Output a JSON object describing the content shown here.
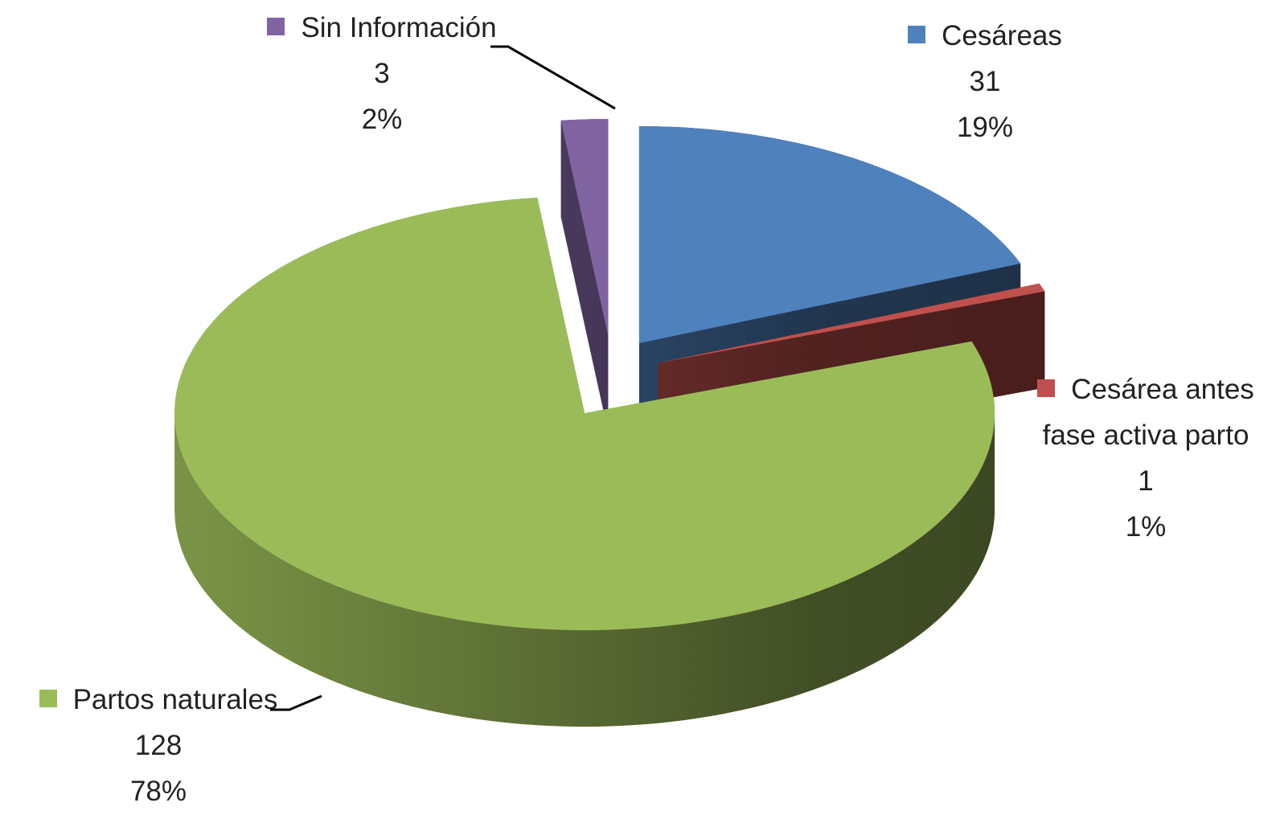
{
  "chart_data": {
    "type": "pie",
    "categories": [
      "Cesáreas",
      "Cesárea antes fase activa parto",
      "Partos naturales",
      "Sin Información"
    ],
    "values": [
      31,
      1,
      128,
      3
    ],
    "percent_labels": [
      "19%",
      "1%",
      "78%",
      "2%"
    ],
    "colors": [
      "#4f81bd",
      "#c0504d",
      "#9bbb59",
      "#8064a2"
    ]
  }
}
